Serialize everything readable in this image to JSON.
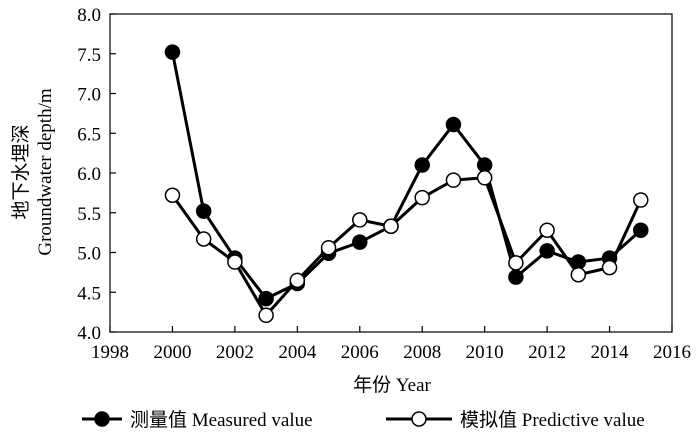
{
  "chart_data": {
    "type": "line",
    "xlabel": "年份 Year",
    "ylabel_cn": "地下水埋深",
    "ylabel_en": "Groundwater depth/m",
    "xlim": [
      1998,
      2016
    ],
    "ylim": [
      4.0,
      8.0
    ],
    "xticks": [
      "1998",
      "2000",
      "2002",
      "2004",
      "2006",
      "2008",
      "2010",
      "2012",
      "2014",
      "2016"
    ],
    "yticks": [
      "4.0",
      "4.5",
      "5.0",
      "5.5",
      "6.0",
      "6.5",
      "7.0",
      "7.5",
      "8.0"
    ],
    "legend_position": "bottom",
    "series": [
      {
        "name": "测量值 Measured value",
        "marker": "filled-circle",
        "color": "#000000",
        "x": [
          2000,
          2001,
          2002,
          2003,
          2004,
          2005,
          2006,
          2007,
          2008,
          2009,
          2010,
          2011,
          2012,
          2013,
          2014,
          2015
        ],
        "y": [
          7.52,
          5.52,
          4.93,
          4.42,
          4.61,
          4.99,
          5.13,
          5.33,
          6.1,
          6.61,
          6.1,
          4.69,
          5.02,
          4.88,
          4.93,
          5.28
        ]
      },
      {
        "name": "模拟值 Predictive value",
        "marker": "open-circle",
        "color": "#000000",
        "x": [
          2000,
          2001,
          2002,
          2003,
          2004,
          2005,
          2006,
          2007,
          2008,
          2009,
          2010,
          2011,
          2012,
          2013,
          2014,
          2015
        ],
        "y": [
          5.72,
          5.17,
          4.88,
          4.21,
          4.65,
          5.06,
          5.41,
          5.33,
          5.69,
          5.91,
          5.94,
          4.87,
          5.28,
          4.72,
          4.81,
          5.66
        ]
      }
    ]
  }
}
